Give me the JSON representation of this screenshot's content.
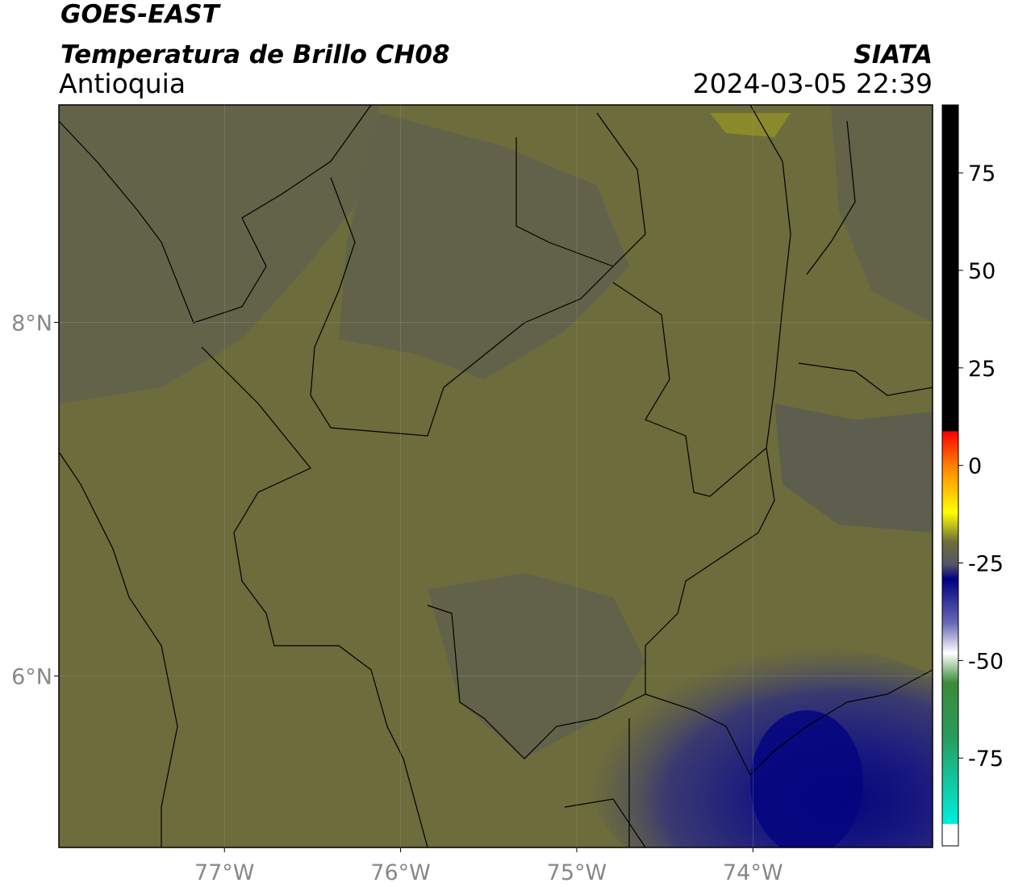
{
  "map": {
    "source": "GOES-EAST",
    "title": "Temperatura de Brillo CH08",
    "region": "Antioquia",
    "agency": "SIATA",
    "timestamp": "2024-03-05 22:39",
    "lonlim": [
      -77.94,
      -72.98
    ],
    "latlim": [
      5.03,
      9.23
    ],
    "lonticks": [
      {
        "value": -77,
        "label": "77°W"
      },
      {
        "value": -76,
        "label": "76°W"
      },
      {
        "value": -75,
        "label": "75°W"
      },
      {
        "value": -74,
        "label": "74°W"
      }
    ],
    "latticks": [
      {
        "value": 8,
        "label": "8°N"
      },
      {
        "value": 6,
        "label": "6°N"
      }
    ]
  },
  "colorbar": {
    "lim": [
      -97.5,
      92.4
    ],
    "ticks": [
      75,
      50,
      25,
      0,
      -25,
      -50,
      -75
    ]
  }
}
